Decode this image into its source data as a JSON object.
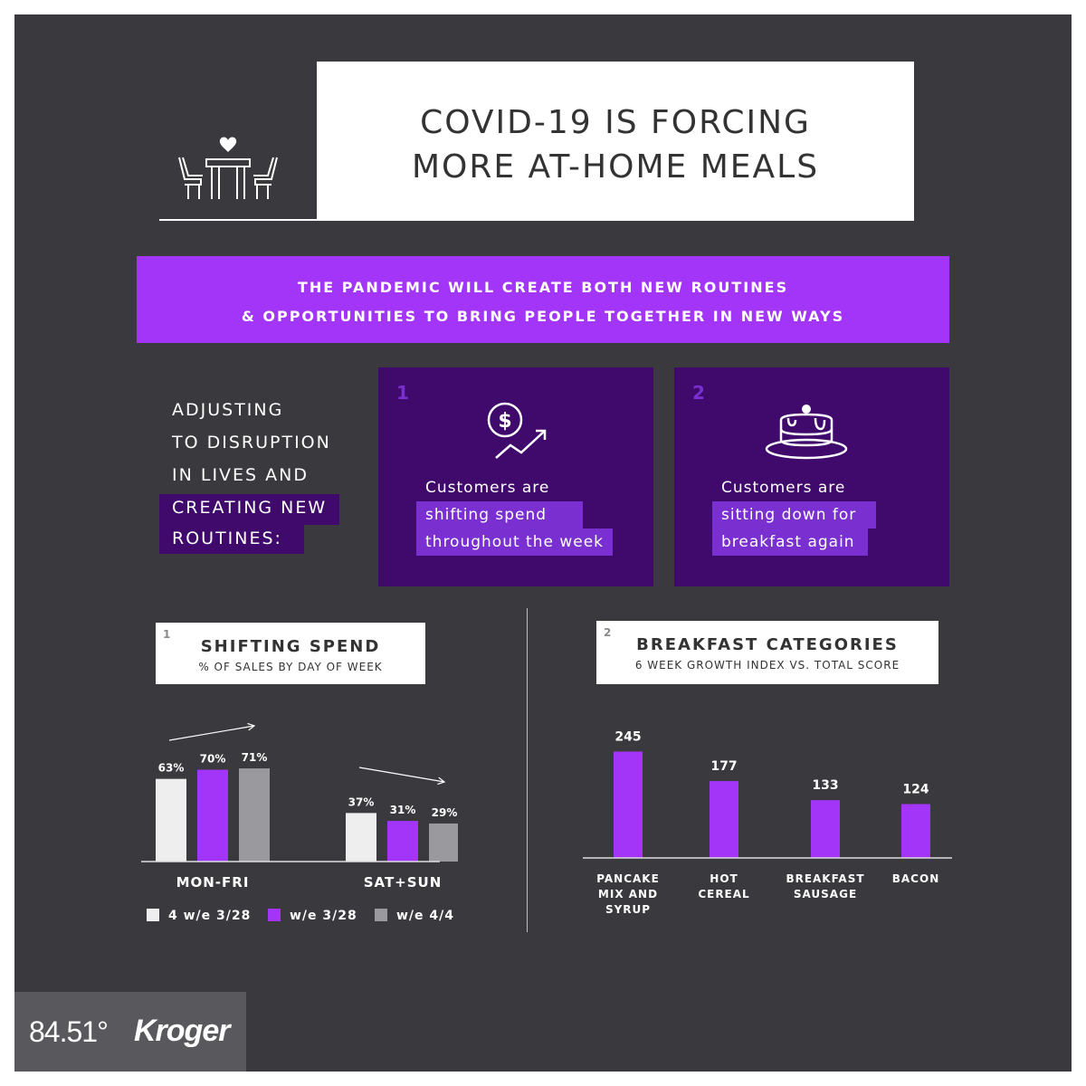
{
  "header": {
    "title_line1": "COVID-19 IS FORCING",
    "title_line2": "MORE AT-HOME MEALS",
    "icon": "dining-table-heart-icon"
  },
  "banner": {
    "line1": "THE PANDEMIC WILL CREATE BOTH NEW ROUTINES",
    "line2": "& OPPORTUNITIES TO BRING PEOPLE TOGETHER IN NEW WAYS",
    "color": "#a235f7"
  },
  "side_text": {
    "line1": "ADJUSTING",
    "line2": "TO DISRUPTION",
    "line3": "IN LIVES AND",
    "line4": "CREATING NEW",
    "line5": "ROUTINES:"
  },
  "cards": [
    {
      "number": "1",
      "icon": "dollar-growth-icon",
      "line1": "Customers are",
      "line2": "shifting spend",
      "line3": "throughout the week"
    },
    {
      "number": "2",
      "icon": "pancakes-icon",
      "line1": "Customers are",
      "line2": "sitting down for",
      "line3": "breakfast again"
    }
  ],
  "colors": {
    "background": "#3a393e",
    "dark_purple": "#3f0a6b",
    "highlight_purple": "#7a2fd0",
    "series_light": "#eeeeee",
    "series_purple": "#a235f7",
    "series_gray": "#9a9a9e"
  },
  "chart_data": [
    {
      "type": "bar",
      "section_number": "1",
      "title": "SHIFTING SPEND",
      "subtitle": "% OF SALES BY DAY OF WEEK",
      "categories": [
        "MON-FRI",
        "SAT+SUN"
      ],
      "series": [
        {
          "name": "4 w/e 3/28",
          "values": [
            63,
            37
          ],
          "labels": [
            "63%",
            "37%"
          ],
          "color": "#eeeeee"
        },
        {
          "name": "w/e 3/28",
          "values": [
            70,
            31
          ],
          "labels": [
            "70%",
            "31%"
          ],
          "color": "#a235f7"
        },
        {
          "name": "w/e 4/4",
          "values": [
            71,
            29
          ],
          "labels": [
            "71%",
            "29%"
          ],
          "color": "#9a9a9e"
        }
      ],
      "trend_arrows": [
        "up",
        "down"
      ],
      "ylim": [
        0,
        100
      ],
      "legend": "bottom",
      "grid": false
    },
    {
      "type": "bar",
      "section_number": "2",
      "title": "BREAKFAST CATEGORIES",
      "subtitle": "6 WEEK GROWTH INDEX VS. TOTAL SCORE",
      "categories": [
        [
          "PANCAKE",
          "MIX AND",
          "SYRUP"
        ],
        [
          "HOT",
          "CEREAL"
        ],
        [
          "BREAKFAST",
          "SAUSAGE"
        ],
        [
          "BACON"
        ]
      ],
      "values": [
        245,
        177,
        133,
        124
      ],
      "labels": [
        "245",
        "177",
        "133",
        "124"
      ],
      "color": "#a235f7",
      "ylim": [
        0,
        300
      ],
      "grid": false
    }
  ],
  "logos": {
    "logo1": "84.51°",
    "logo2": "Kroger"
  }
}
